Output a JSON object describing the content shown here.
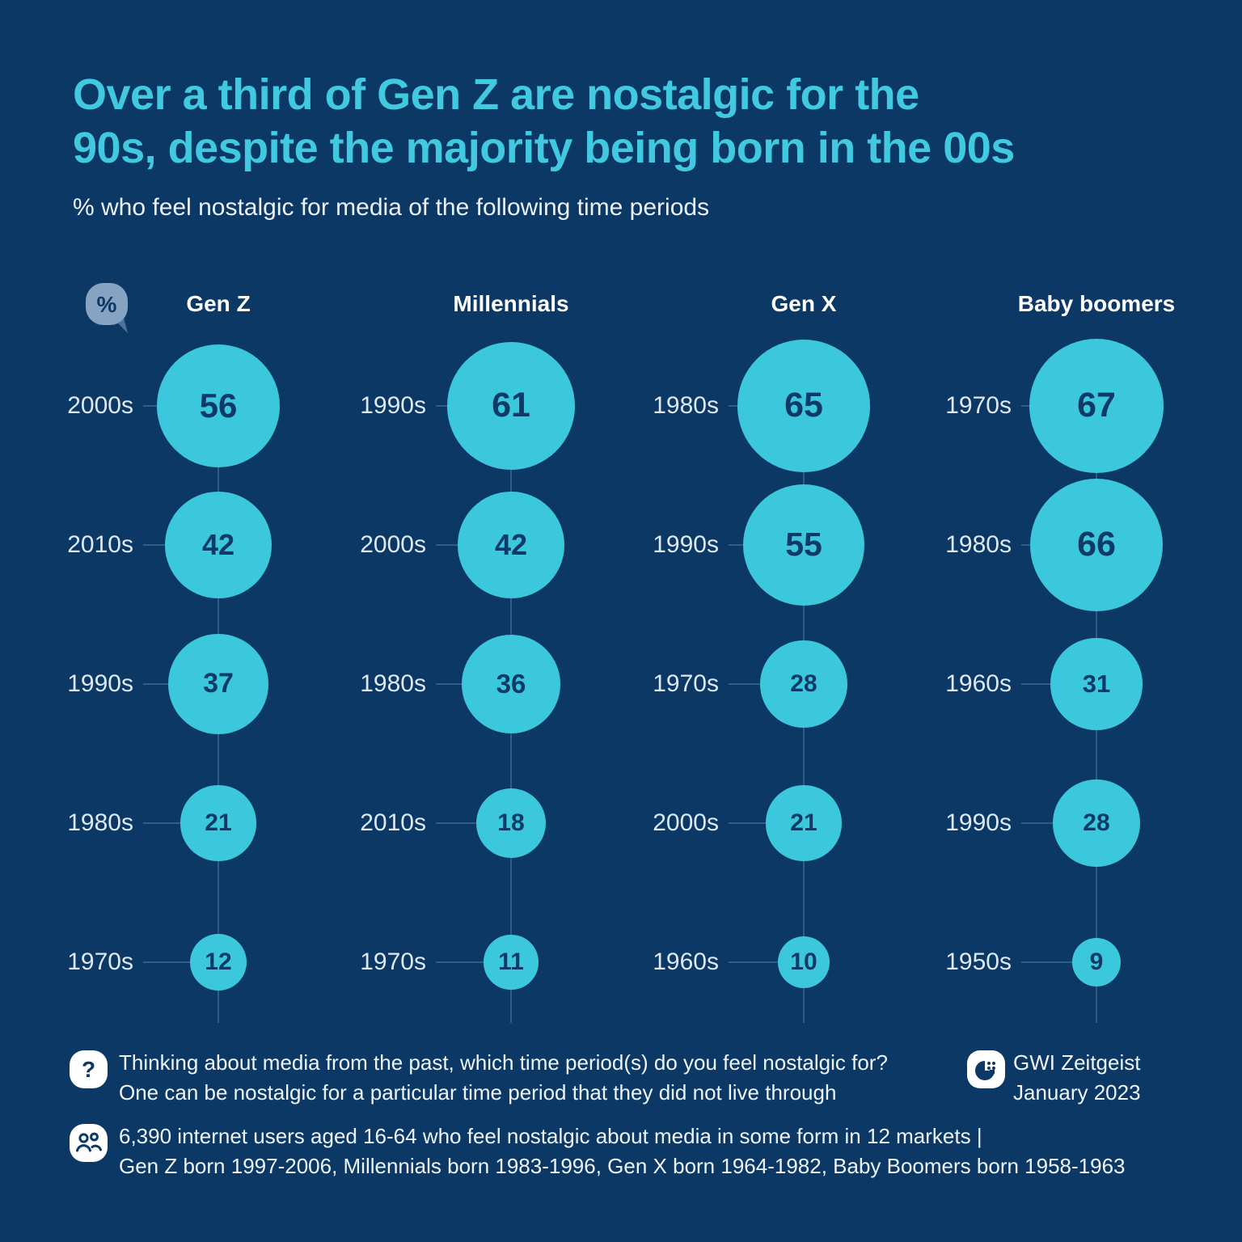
{
  "title_lines": [
    "Over a third of Gen Z are nostalgic for the",
    "90s, despite the majority being born in the 00s"
  ],
  "subtitle": "% who feel nostalgic for media of the following time periods",
  "icons": {
    "percent_glyph": "%",
    "question_glyph": "?"
  },
  "chart_data": {
    "type": "bubble",
    "unit": "%",
    "title": "% who feel nostalgic for media of the following time periods",
    "legend_position": "none",
    "grid": false,
    "value_encoding": "circle area proportional to value",
    "groups": [
      {
        "name": "Gen Z",
        "items": [
          {
            "period": "2000s",
            "value": 56
          },
          {
            "period": "2010s",
            "value": 42
          },
          {
            "period": "1990s",
            "value": 37
          },
          {
            "period": "1980s",
            "value": 21
          },
          {
            "period": "1970s",
            "value": 12
          }
        ]
      },
      {
        "name": "Millennials",
        "items": [
          {
            "period": "1990s",
            "value": 61
          },
          {
            "period": "2000s",
            "value": 42
          },
          {
            "period": "1980s",
            "value": 36
          },
          {
            "period": "2010s",
            "value": 18
          },
          {
            "period": "1970s",
            "value": 11
          }
        ]
      },
      {
        "name": "Gen X",
        "items": [
          {
            "period": "1980s",
            "value": 65
          },
          {
            "period": "1990s",
            "value": 55
          },
          {
            "period": "1970s",
            "value": 28
          },
          {
            "period": "2000s",
            "value": 21
          },
          {
            "period": "1960s",
            "value": 10
          }
        ]
      },
      {
        "name": "Baby boomers",
        "items": [
          {
            "period": "1970s",
            "value": 67
          },
          {
            "period": "1980s",
            "value": 66
          },
          {
            "period": "1960s",
            "value": 31
          },
          {
            "period": "1990s",
            "value": 28
          },
          {
            "period": "1950s",
            "value": 9
          }
        ]
      }
    ]
  },
  "footer": {
    "question_lines": [
      "Thinking about media from the past, which time period(s) do you feel nostalgic for?",
      "One can be nostalgic for a particular time period that they did not live through"
    ],
    "source_lines": [
      "GWI Zeitgeist",
      "January 2023"
    ],
    "sample_lines": [
      "6,390 internet users aged 16-64 who feel nostalgic about media in some form in 12 markets |",
      "Gen Z born 1997-2006, Millennials born 1983-1996, Gen X born 1964-1982, Baby Boomers born 1958-1963"
    ]
  },
  "colors": {
    "background": "#0c3866",
    "bubble": "#3cc8dc",
    "title": "#40c9e0",
    "value_text": "#0d3a66",
    "label_text": "#dde8f2",
    "line": "#4d7aa6"
  }
}
